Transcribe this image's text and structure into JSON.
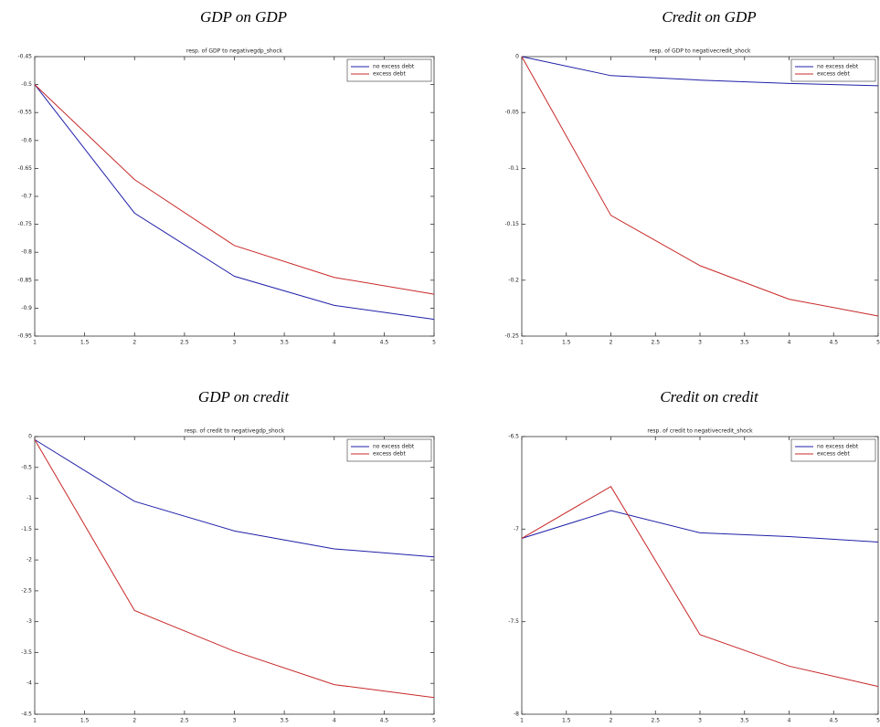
{
  "chart_data": [
    {
      "type": "line",
      "heading": "GDP on GDP",
      "title": "resp. of GDP to negativegdp_shock",
      "x": [
        1,
        2,
        3,
        4,
        5
      ],
      "xlim": [
        1,
        5
      ],
      "xticks": [
        1,
        1.5,
        2,
        2.5,
        3,
        3.5,
        4,
        4.5,
        5
      ],
      "ylim": [
        -0.95,
        -0.45
      ],
      "yticks": [
        -0.95,
        -0.9,
        -0.85,
        -0.8,
        -0.75,
        -0.7,
        -0.65,
        -0.6,
        -0.55,
        -0.5,
        -0.45
      ],
      "legend": "upper right",
      "grid": false,
      "series": [
        {
          "name": "no excess debt",
          "color": "#1f1fa8",
          "values": [
            -0.5,
            -0.73,
            -0.843,
            -0.895,
            -0.92
          ]
        },
        {
          "name": "excess debt",
          "color": "#c82828",
          "values": [
            -0.5,
            -0.67,
            -0.788,
            -0.845,
            -0.875
          ]
        }
      ]
    },
    {
      "type": "line",
      "heading": "Credit on GDP",
      "title": "resp. of GDP to negativecredit_shock",
      "x": [
        1,
        2,
        3,
        4,
        5
      ],
      "xlim": [
        1,
        5
      ],
      "xticks": [
        1,
        1.5,
        2,
        2.5,
        3,
        3.5,
        4,
        4.5,
        5
      ],
      "ylim": [
        -0.25,
        0
      ],
      "yticks": [
        -0.25,
        -0.2,
        -0.15,
        -0.1,
        -0.05,
        0
      ],
      "legend": "upper right",
      "grid": false,
      "series": [
        {
          "name": "no excess debt",
          "color": "#1f1fa8",
          "values": [
            0,
            -0.017,
            -0.021,
            -0.024,
            -0.026
          ]
        },
        {
          "name": "excess debt",
          "color": "#c82828",
          "values": [
            0,
            -0.142,
            -0.187,
            -0.217,
            -0.232
          ]
        }
      ]
    },
    {
      "type": "line",
      "heading": "GDP on credit",
      "title": "resp. of credit to negativegdp_shock",
      "x": [
        1,
        2,
        3,
        4,
        5
      ],
      "xlim": [
        1,
        5
      ],
      "xticks": [
        1,
        1.5,
        2,
        2.5,
        3,
        3.5,
        4,
        4.5,
        5
      ],
      "ylim": [
        -4.5,
        0
      ],
      "yticks": [
        -4.5,
        -4,
        -3.5,
        -3,
        -2.5,
        -2,
        -1.5,
        -1,
        -0.5,
        0
      ],
      "legend": "upper right",
      "grid": false,
      "series": [
        {
          "name": "no excess debt",
          "color": "#1f1fa8",
          "values": [
            -0.05,
            -1.05,
            -1.53,
            -1.82,
            -1.95
          ]
        },
        {
          "name": "excess debt",
          "color": "#c82828",
          "values": [
            -0.05,
            -2.82,
            -3.48,
            -4.02,
            -4.23
          ]
        }
      ]
    },
    {
      "type": "line",
      "heading": "Credit on credit",
      "title": "resp. of credit to negativecredit_shock",
      "x": [
        1,
        2,
        3,
        4,
        5
      ],
      "xlim": [
        1,
        5
      ],
      "xticks": [
        1,
        1.5,
        2,
        2.5,
        3,
        3.5,
        4,
        4.5,
        5
      ],
      "ylim": [
        -8,
        -6.5
      ],
      "yticks": [
        -8,
        -7.5,
        -7,
        -6.5
      ],
      "legend": "upper right",
      "grid": false,
      "series": [
        {
          "name": "no excess debt",
          "color": "#1f1fa8",
          "values": [
            -7.05,
            -6.9,
            -7.02,
            -7.04,
            -7.07
          ]
        },
        {
          "name": "excess debt",
          "color": "#c82828",
          "values": [
            -7.05,
            -6.77,
            -7.57,
            -7.74,
            -7.85
          ]
        }
      ]
    }
  ]
}
